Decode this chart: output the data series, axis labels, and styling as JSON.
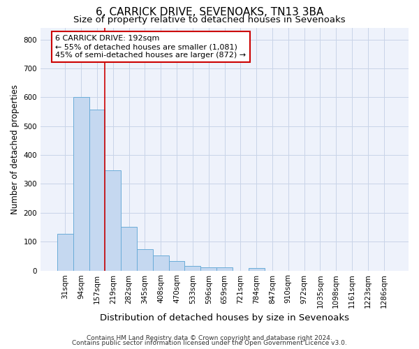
{
  "title": "6, CARRICK DRIVE, SEVENOAKS, TN13 3BA",
  "subtitle": "Size of property relative to detached houses in Sevenoaks",
  "xlabel": "Distribution of detached houses by size in Sevenoaks",
  "ylabel": "Number of detached properties",
  "categories": [
    "31sqm",
    "94sqm",
    "157sqm",
    "219sqm",
    "282sqm",
    "345sqm",
    "408sqm",
    "470sqm",
    "533sqm",
    "596sqm",
    "659sqm",
    "721sqm",
    "784sqm",
    "847sqm",
    "910sqm",
    "972sqm",
    "1035sqm",
    "1098sqm",
    "1161sqm",
    "1223sqm",
    "1286sqm"
  ],
  "values": [
    127,
    600,
    557,
    348,
    152,
    75,
    52,
    33,
    15,
    12,
    10,
    0,
    8,
    0,
    0,
    0,
    0,
    0,
    0,
    0,
    0
  ],
  "bar_color": "#c5d8f0",
  "bar_edge_color": "#6aacd8",
  "bar_edge_width": 0.7,
  "vline_x": 2.5,
  "vline_color": "#cc0000",
  "annotation_text": "6 CARRICK DRIVE: 192sqm\n← 55% of detached houses are smaller (1,081)\n45% of semi-detached houses are larger (872) →",
  "annotation_box_color": "white",
  "annotation_box_edge_color": "#cc0000",
  "ylim": [
    0,
    840
  ],
  "yticks": [
    0,
    100,
    200,
    300,
    400,
    500,
    600,
    700,
    800
  ],
  "grid_color": "#c8d4e8",
  "background_color": "#ffffff",
  "plot_bg_color": "#eef2fb",
  "footer_line1": "Contains HM Land Registry data © Crown copyright and database right 2024.",
  "footer_line2": "Contains public sector information licensed under the Open Government Licence v3.0.",
  "title_fontsize": 11,
  "subtitle_fontsize": 9.5,
  "tick_fontsize": 7.5,
  "xlabel_fontsize": 9.5,
  "ylabel_fontsize": 8.5,
  "footer_fontsize": 6.5
}
